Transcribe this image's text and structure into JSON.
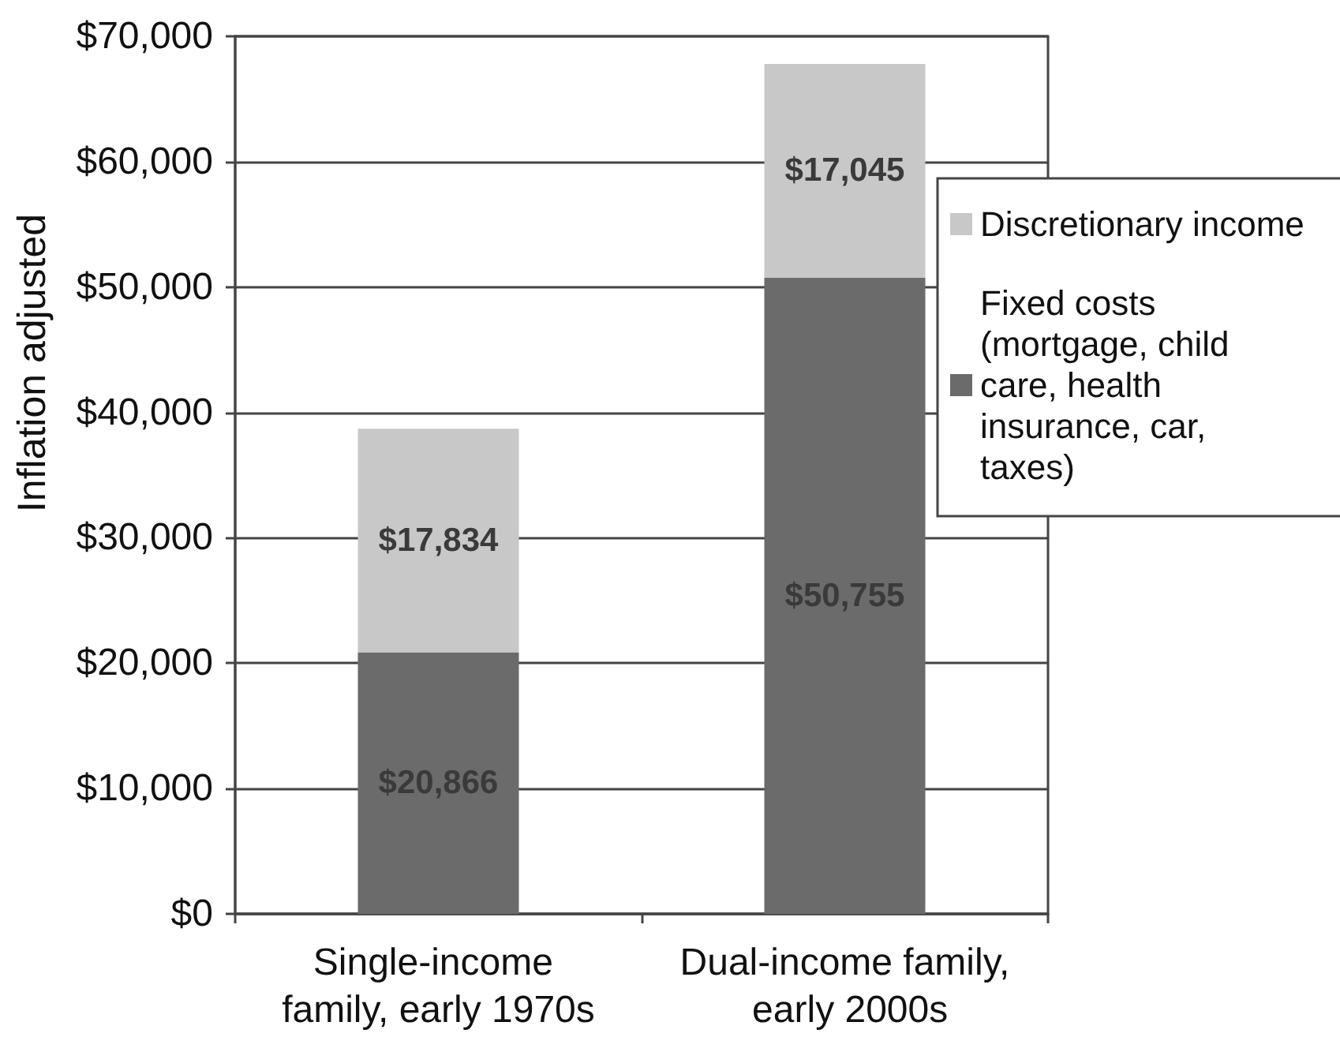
{
  "chart_data": {
    "type": "bar",
    "stacked": true,
    "ylabel": "Inflation adjusted",
    "categories": [
      "Single-income family, early 1970s",
      "Dual-income family, early 2000s"
    ],
    "series": [
      {
        "name": "Fixed costs (mortgage, child care, health insurance, car, taxes)",
        "color": "#6b6b6b",
        "values": [
          20866,
          50755
        ],
        "value_labels": [
          "$20,866",
          "$50,755"
        ]
      },
      {
        "name": "Discretionary income",
        "color": "#c8c8c8",
        "values": [
          17834,
          17045
        ],
        "value_labels": [
          "$17,834",
          "$17,045"
        ]
      }
    ],
    "ylim": [
      0,
      70000
    ],
    "yticks": [
      {
        "value": 0,
        "label": "$0"
      },
      {
        "value": 10000,
        "label": "$10,000"
      },
      {
        "value": 20000,
        "label": "$20,000"
      },
      {
        "value": 30000,
        "label": "$30,000"
      },
      {
        "value": 40000,
        "label": "$40,000"
      },
      {
        "value": 50000,
        "label": "$50,000"
      },
      {
        "value": 60000,
        "label": "$60,000"
      },
      {
        "value": 70000,
        "label": "$70,000"
      }
    ],
    "grid": "y",
    "legend": "right"
  }
}
